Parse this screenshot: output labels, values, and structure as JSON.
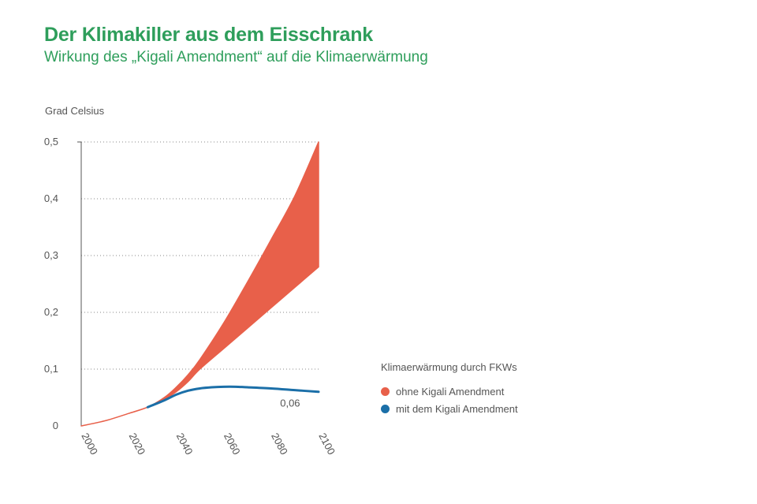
{
  "header": {
    "title": "Der Klimakiller aus dem Eisschrank",
    "subtitle": "Wirkung des „Kigali Amendment“ auf die Klimaerwärmung"
  },
  "chart_data": {
    "type": "area",
    "ylabel": "Grad Celsius",
    "xlim": [
      2000,
      2100
    ],
    "ylim": [
      0,
      0.5
    ],
    "x_ticks": [
      "2000",
      "2020",
      "2040",
      "2060",
      "2080",
      "2100"
    ],
    "y_ticks": [
      "0",
      "0,1",
      "0,2",
      "0,3",
      "0,4",
      "0,5"
    ],
    "grid": "horizontal dotted",
    "legend_title": "Klimaerwärmung durch FKWs",
    "series": [
      {
        "name": "ohne Kigali Amendment",
        "color": "#e8604a",
        "kind": "band",
        "x": [
          2000,
          2010,
          2020,
          2028,
          2035,
          2040,
          2045,
          2050,
          2060,
          2070,
          2080,
          2090,
          2100
        ],
        "lower": [
          0.0,
          0.009,
          0.022,
          0.033,
          0.047,
          0.06,
          0.078,
          0.1,
          0.136,
          0.172,
          0.208,
          0.244,
          0.28
        ],
        "upper": [
          0.0,
          0.009,
          0.022,
          0.033,
          0.05,
          0.068,
          0.09,
          0.117,
          0.181,
          0.253,
          0.328,
          0.405,
          0.5
        ]
      },
      {
        "name": "mit dem Kigali Amendment",
        "color": "#1b6fa8",
        "kind": "line",
        "x": [
          2028,
          2035,
          2040,
          2045,
          2050,
          2055,
          2060,
          2065,
          2070,
          2080,
          2090,
          2100
        ],
        "values": [
          0.033,
          0.045,
          0.055,
          0.062,
          0.066,
          0.068,
          0.069,
          0.069,
          0.068,
          0.066,
          0.063,
          0.06
        ]
      }
    ],
    "annotations": [
      {
        "text": "0,06",
        "x": 2090,
        "y": 0.045
      }
    ]
  }
}
